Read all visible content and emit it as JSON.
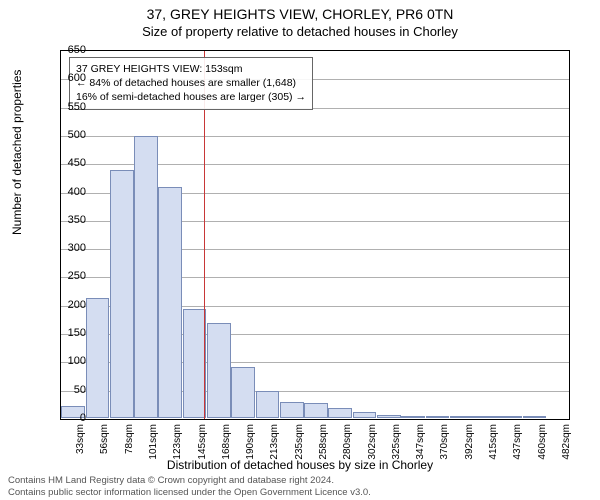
{
  "title": "37, GREY HEIGHTS VIEW, CHORLEY, PR6 0TN",
  "subtitle": "Size of property relative to detached houses in Chorley",
  "ylabel": "Number of detached properties",
  "xlabel": "Distribution of detached houses by size in Chorley",
  "ylim": [
    0,
    650
  ],
  "ytick_step": 50,
  "x_categories": [
    "33sqm",
    "56sqm",
    "78sqm",
    "101sqm",
    "123sqm",
    "145sqm",
    "168sqm",
    "190sqm",
    "213sqm",
    "235sqm",
    "258sqm",
    "280sqm",
    "302sqm",
    "325sqm",
    "347sqm",
    "370sqm",
    "392sqm",
    "415sqm",
    "437sqm",
    "460sqm",
    "482sqm"
  ],
  "bar_values": [
    22,
    212,
    438,
    498,
    408,
    192,
    168,
    90,
    48,
    28,
    26,
    18,
    10,
    6,
    4,
    3,
    2,
    2,
    1,
    1,
    0
  ],
  "bar_fill": "#d4ddf1",
  "bar_stroke": "#7a8db8",
  "grid_color": "#b0b0b0",
  "background_color": "#ffffff",
  "reference_line_x_index": 5.4,
  "reference_line_color": "#c83737",
  "annotation": {
    "line1": "37 GREY HEIGHTS VIEW: 153sqm",
    "line2": "← 84% of detached houses are smaller (1,648)",
    "line3": "16% of semi-detached houses are larger (305) →"
  },
  "footer1": "Contains HM Land Registry data © Crown copyright and database right 2024.",
  "footer2": "Contains public sector information licensed under the Open Government Licence v3.0."
}
